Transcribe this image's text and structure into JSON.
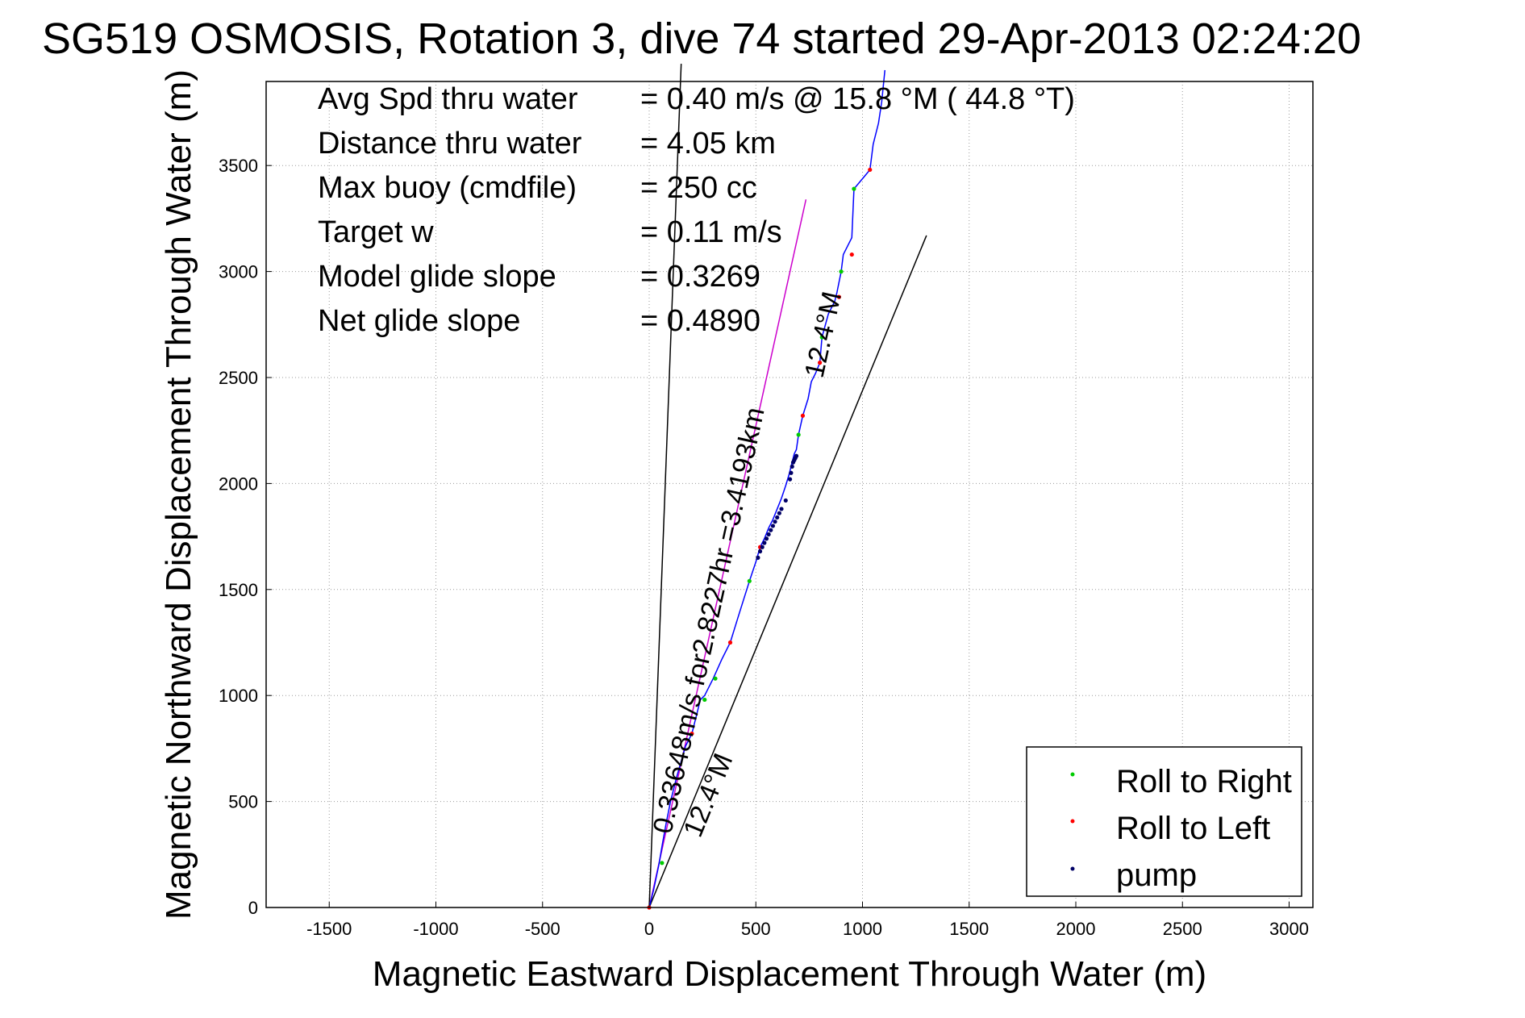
{
  "chart_data": {
    "type": "line",
    "title": "SG519 OSMOSIS, Rotation 3, dive 74 started 29-Apr-2013 02:24:20",
    "xlabel": "Magnetic Eastward Displacement Through Water (m)",
    "ylabel": "Magnetic Northward Displacement Through Water (m)",
    "xlim": [
      -1800,
      3100
    ],
    "ylim": [
      0,
      3900
    ],
    "xticks": [
      -1500,
      -1000,
      -500,
      0,
      500,
      1000,
      1500,
      2000,
      2500,
      3000
    ],
    "yticks": [
      0,
      500,
      1000,
      1500,
      2000,
      2500,
      3000,
      3500
    ],
    "grid": true,
    "legend_position": "bottom-right",
    "stats": [
      {
        "label": "Avg Spd thru water",
        "value": "=  0.40 m/s @  15.8 °M ( 44.8 °T)"
      },
      {
        "label": "Distance thru water",
        "value": "=  4.05 km"
      },
      {
        "label": "Max buoy (cmdfile)",
        "value": "= 250 cc"
      },
      {
        "label": "Target w",
        "value": "= 0.11 m/s"
      },
      {
        "label": "Model glide slope",
        "value": "= 0.3269"
      },
      {
        "label": "Net glide slope",
        "value": "= 0.4890"
      }
    ],
    "annotations": {
      "track_label": "0.33648m/s for2.8227hr =3.4193km",
      "track_heading": "12.4°M",
      "origin_heading": "12.4°M"
    },
    "reference_lines": [
      {
        "from": [
          0,
          0
        ],
        "to": [
          150,
          3980
        ],
        "color": "#000000"
      },
      {
        "from": [
          0,
          0
        ],
        "to": [
          1300,
          3170
        ],
        "color": "#000000"
      },
      {
        "from": [
          0,
          0
        ],
        "to": [
          735,
          3340
        ],
        "color": "#cc00cc"
      }
    ],
    "series": [
      {
        "name": "",
        "color": "#0000ff",
        "x": [
          0,
          20,
          45,
          62,
          80,
          100,
          130,
          170,
          200,
          240,
          260,
          300,
          340,
          380,
          420,
          470,
          500,
          520,
          540,
          560,
          580,
          600,
          620,
          640,
          655,
          665,
          670,
          675,
          680,
          690,
          700,
          720,
          745,
          760,
          780,
          800,
          810,
          840,
          870,
          880,
          900,
          910,
          950,
          960,
          1010,
          1035,
          1050,
          1075,
          1090,
          1105
        ],
        "y": [
          0,
          80,
          200,
          300,
          400,
          500,
          620,
          760,
          820,
          980,
          1000,
          1080,
          1170,
          1250,
          1380,
          1540,
          1630,
          1700,
          1740,
          1790,
          1830,
          1880,
          1930,
          1990,
          2040,
          2080,
          2100,
          2120,
          2140,
          2160,
          2230,
          2320,
          2400,
          2480,
          2520,
          2570,
          2690,
          2800,
          2860,
          2900,
          3000,
          3080,
          3160,
          3390,
          3450,
          3480,
          3600,
          3700,
          3800,
          3950
        ]
      }
    ],
    "markers": {
      "roll_to_right": {
        "name": "Roll to Right",
        "color": "#00cc00",
        "x": [
          60,
          260,
          310,
          470,
          700,
          810,
          900,
          960
        ],
        "y": [
          210,
          980,
          1080,
          1540,
          2230,
          2690,
          3000,
          3390
        ]
      },
      "roll_to_left": {
        "name": "Roll to Left",
        "color": "#ff0000",
        "x": [
          0,
          200,
          380,
          520,
          720,
          800,
          890,
          950,
          1035
        ],
        "y": [
          0,
          820,
          1250,
          1700,
          2320,
          2570,
          2880,
          3080,
          3480
        ]
      },
      "pump": {
        "name": "pump",
        "color": "#000066",
        "x": [
          510,
          520,
          530,
          540,
          550,
          560,
          570,
          580,
          590,
          600,
          610,
          620,
          640,
          660,
          665,
          670,
          675,
          680,
          685,
          690
        ],
        "y": [
          1650,
          1680,
          1700,
          1720,
          1740,
          1760,
          1780,
          1800,
          1820,
          1840,
          1860,
          1880,
          1920,
          2020,
          2050,
          2080,
          2100,
          2110,
          2120,
          2130
        ]
      }
    }
  }
}
